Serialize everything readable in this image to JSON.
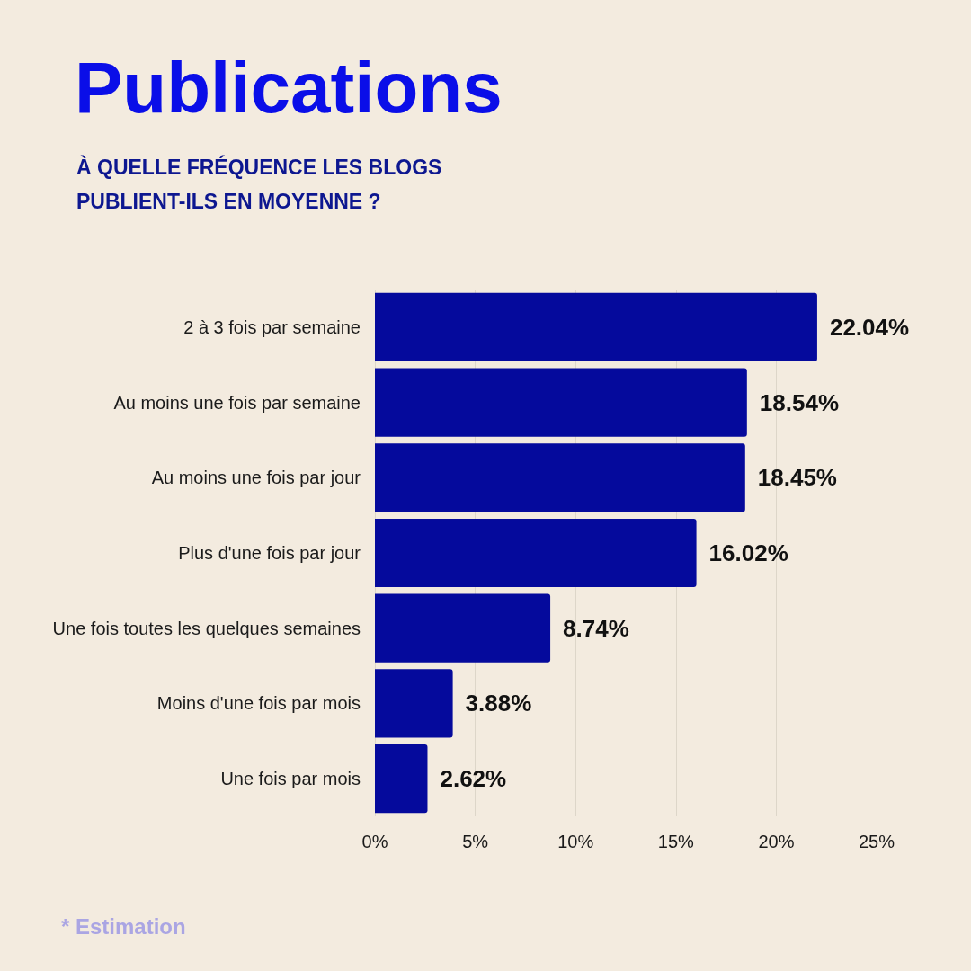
{
  "chart_data": {
    "type": "bar",
    "orientation": "horizontal",
    "title": "Publications",
    "subtitle": "À QUELLE FRÉQUENCE LES BLOGS PUBLIENT-ILS EN MOYENNE ?",
    "categories": [
      "2 à 3 fois par semaine",
      "Au moins une fois par semaine",
      "Au moins une fois par jour",
      "Plus d'une fois par jour",
      "Une fois toutes les quelques semaines",
      "Moins d'une fois par mois",
      "Une fois par mois"
    ],
    "values": [
      22.04,
      18.54,
      18.45,
      16.02,
      8.74,
      3.88,
      2.62
    ],
    "value_labels": [
      "22.04%",
      "18.54%",
      "18.45%",
      "16.02%",
      "8.74%",
      "3.88%",
      "2.62%"
    ],
    "color": "#050a9c",
    "xlim": [
      0,
      25
    ],
    "xticks": [
      {
        "value": 0,
        "label": "0%"
      },
      {
        "value": 5,
        "label": "5%"
      },
      {
        "value": 10,
        "label": "10%"
      },
      {
        "value": 15,
        "label": "15%"
      },
      {
        "value": 20,
        "label": "20%"
      },
      {
        "value": 25,
        "label": "25%"
      }
    ],
    "grid": "x",
    "annotations": [
      "* Estimation"
    ]
  }
}
